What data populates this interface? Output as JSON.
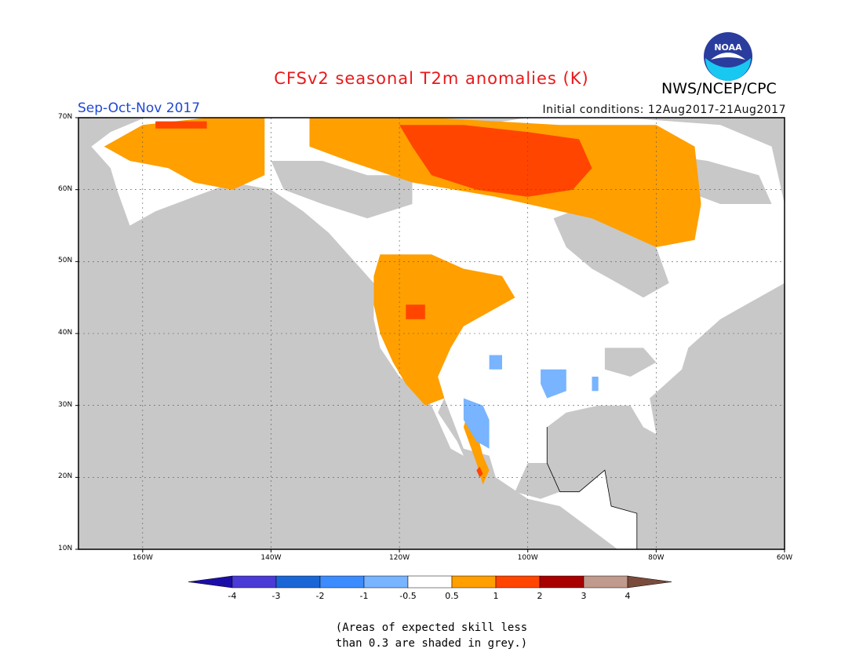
{
  "header": {
    "title": "CFSv2 seasonal T2m anomalies (K)",
    "period": "Sep-Oct-Nov 2017",
    "initial_conditions": "Initial conditions: 12Aug2017-21Aug2017",
    "organization": "NWS/NCEP/CPC",
    "logo_text": "NOAA"
  },
  "map": {
    "extent": {
      "lon_min": -170,
      "lon_max": -60,
      "lat_min": 10,
      "lat_max": 70
    },
    "lat_ticks": [
      "10N",
      "20N",
      "30N",
      "40N",
      "50N",
      "60N",
      "70N"
    ],
    "lon_ticks": [
      "160W",
      "140W",
      "120W",
      "100W",
      "80W",
      "60W"
    ],
    "colors": {
      "grey_low_skill": "#c8c8c8",
      "neutral": "#ffffff",
      "warm_0_5_1": "#ff9f00",
      "warm_1_2": "#ff4500",
      "warm_2_3": "#a80000",
      "cool_m1_m0_5": "#78b4ff",
      "cool_m2_m1": "#3c8cff"
    }
  },
  "colorbar": {
    "labels": [
      "-4",
      "-3",
      "-2",
      "-1",
      "-0.5",
      "0.5",
      "1",
      "2",
      "3",
      "4"
    ],
    "colors": [
      "#1b0ea8",
      "#4a3ad6",
      "#1a66d6",
      "#3c8cff",
      "#78b4ff",
      "#ffffff",
      "#ff9f00",
      "#ff4500",
      "#a80000",
      "#c09a8c",
      "#7a4a3a"
    ]
  },
  "footnote": {
    "line1": "(Areas of expected skill less",
    "line2": "than 0.3 are shaded in grey.)"
  }
}
